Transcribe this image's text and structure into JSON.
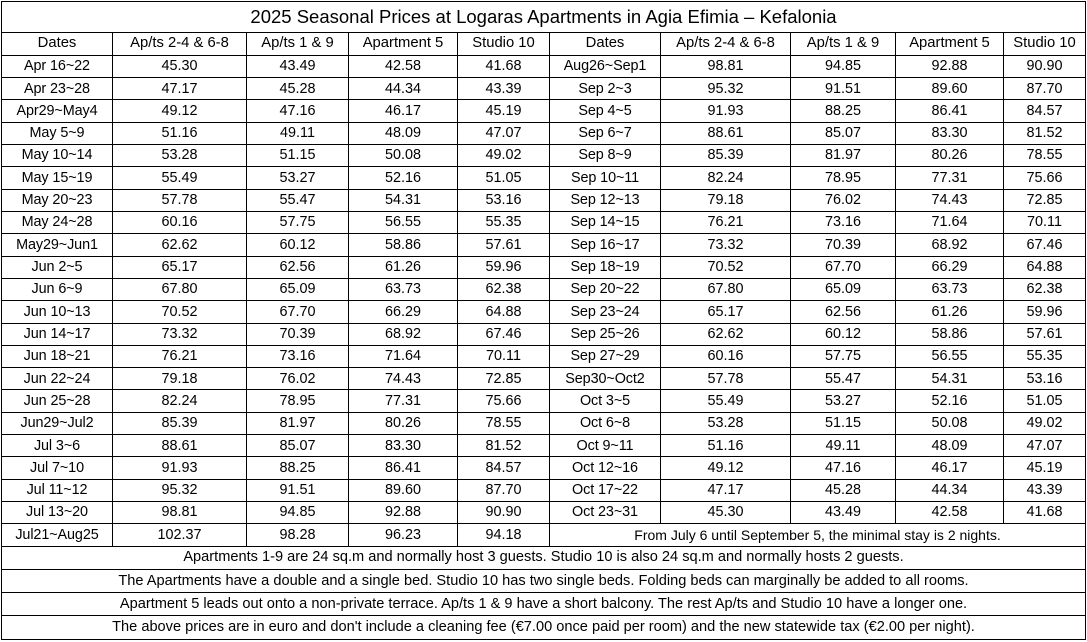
{
  "title": "2025 Seasonal Prices at Logaras Apartments in Agia Efimia – Kefalonia",
  "headers": [
    "Dates",
    "Ap/ts 2-4 & 6-8",
    "Ap/ts 1 & 9",
    "Apartment 5",
    "Studio 10"
  ],
  "left_rows": [
    [
      "Apr 16~22",
      "45.30",
      "43.49",
      "42.58",
      "41.68"
    ],
    [
      "Apr 23~28",
      "47.17",
      "45.28",
      "44.34",
      "43.39"
    ],
    [
      "Apr29~May4",
      "49.12",
      "47.16",
      "46.17",
      "45.19"
    ],
    [
      "May 5~9",
      "51.16",
      "49.11",
      "48.09",
      "47.07"
    ],
    [
      "May 10~14",
      "53.28",
      "51.15",
      "50.08",
      "49.02"
    ],
    [
      "May 15~19",
      "55.49",
      "53.27",
      "52.16",
      "51.05"
    ],
    [
      "May 20~23",
      "57.78",
      "55.47",
      "54.31",
      "53.16"
    ],
    [
      "May 24~28",
      "60.16",
      "57.75",
      "56.55",
      "55.35"
    ],
    [
      "May29~Jun1",
      "62.62",
      "60.12",
      "58.86",
      "57.61"
    ],
    [
      "Jun 2~5",
      "65.17",
      "62.56",
      "61.26",
      "59.96"
    ],
    [
      "Jun 6~9",
      "67.80",
      "65.09",
      "63.73",
      "62.38"
    ],
    [
      "Jun 10~13",
      "70.52",
      "67.70",
      "66.29",
      "64.88"
    ],
    [
      "Jun 14~17",
      "73.32",
      "70.39",
      "68.92",
      "67.46"
    ],
    [
      "Jun 18~21",
      "76.21",
      "73.16",
      "71.64",
      "70.11"
    ],
    [
      "Jun 22~24",
      "79.18",
      "76.02",
      "74.43",
      "72.85"
    ],
    [
      "Jun 25~28",
      "82.24",
      "78.95",
      "77.31",
      "75.66"
    ],
    [
      "Jun29~Jul2",
      "85.39",
      "81.97",
      "80.26",
      "78.55"
    ],
    [
      "Jul 3~6",
      "88.61",
      "85.07",
      "83.30",
      "81.52"
    ],
    [
      "Jul 7~10",
      "91.93",
      "88.25",
      "86.41",
      "84.57"
    ],
    [
      "Jul 11~12",
      "95.32",
      "91.51",
      "89.60",
      "87.70"
    ],
    [
      "Jul 13~20",
      "98.81",
      "94.85",
      "92.88",
      "90.90"
    ],
    [
      "Jul21~Aug25",
      "102.37",
      "98.28",
      "96.23",
      "94.18"
    ]
  ],
  "right_rows": [
    [
      "Aug26~Sep1",
      "98.81",
      "94.85",
      "92.88",
      "90.90"
    ],
    [
      "Sep 2~3",
      "95.32",
      "91.51",
      "89.60",
      "87.70"
    ],
    [
      "Sep 4~5",
      "91.93",
      "88.25",
      "86.41",
      "84.57"
    ],
    [
      "Sep 6~7",
      "88.61",
      "85.07",
      "83.30",
      "81.52"
    ],
    [
      "Sep 8~9",
      "85.39",
      "81.97",
      "80.26",
      "78.55"
    ],
    [
      "Sep 10~11",
      "82.24",
      "78.95",
      "77.31",
      "75.66"
    ],
    [
      "Sep 12~13",
      "79.18",
      "76.02",
      "74.43",
      "72.85"
    ],
    [
      "Sep 14~15",
      "76.21",
      "73.16",
      "71.64",
      "70.11"
    ],
    [
      "Sep 16~17",
      "73.32",
      "70.39",
      "68.92",
      "67.46"
    ],
    [
      "Sep 18~19",
      "70.52",
      "67.70",
      "66.29",
      "64.88"
    ],
    [
      "Sep 20~22",
      "67.80",
      "65.09",
      "63.73",
      "62.38"
    ],
    [
      "Sep 23~24",
      "65.17",
      "62.56",
      "61.26",
      "59.96"
    ],
    [
      "Sep 25~26",
      "62.62",
      "60.12",
      "58.86",
      "57.61"
    ],
    [
      "Sep 27~29",
      "60.16",
      "57.75",
      "56.55",
      "55.35"
    ],
    [
      "Sep30~Oct2",
      "57.78",
      "55.47",
      "54.31",
      "53.16"
    ],
    [
      "Oct 3~5",
      "55.49",
      "53.27",
      "52.16",
      "51.05"
    ],
    [
      "Oct 6~8",
      "53.28",
      "51.15",
      "50.08",
      "49.02"
    ],
    [
      "Oct 9~11",
      "51.16",
      "49.11",
      "48.09",
      "47.07"
    ],
    [
      "Oct 12~16",
      "49.12",
      "47.16",
      "46.17",
      "45.19"
    ],
    [
      "Oct 17~22",
      "47.17",
      "45.28",
      "44.34",
      "43.39"
    ],
    [
      "Oct 23~31",
      "45.30",
      "43.49",
      "42.58",
      "41.68"
    ]
  ],
  "min_stay_note": "From July 6 until September 5, the minimal stay is 2 nights.",
  "notes": [
    "Apartments 1-9 are 24 sq.m and normally host 3 guests. Studio 10 is also 24 sq.m and normally hosts 2 guests.",
    "The Apartments have a double and a single bed. Studio 10 has two single beds. Folding beds can marginally be added to all rooms.",
    "Apartment 5 leads out onto a non-private terrace. Ap/ts 1 & 9 have a short balcony. The rest Ap/ts and Studio 10 have a longer one.",
    "The above prices are in euro and don't include a cleaning fee (€7.00 once paid per room) and the new statewide tax (€2.00 per night)."
  ]
}
